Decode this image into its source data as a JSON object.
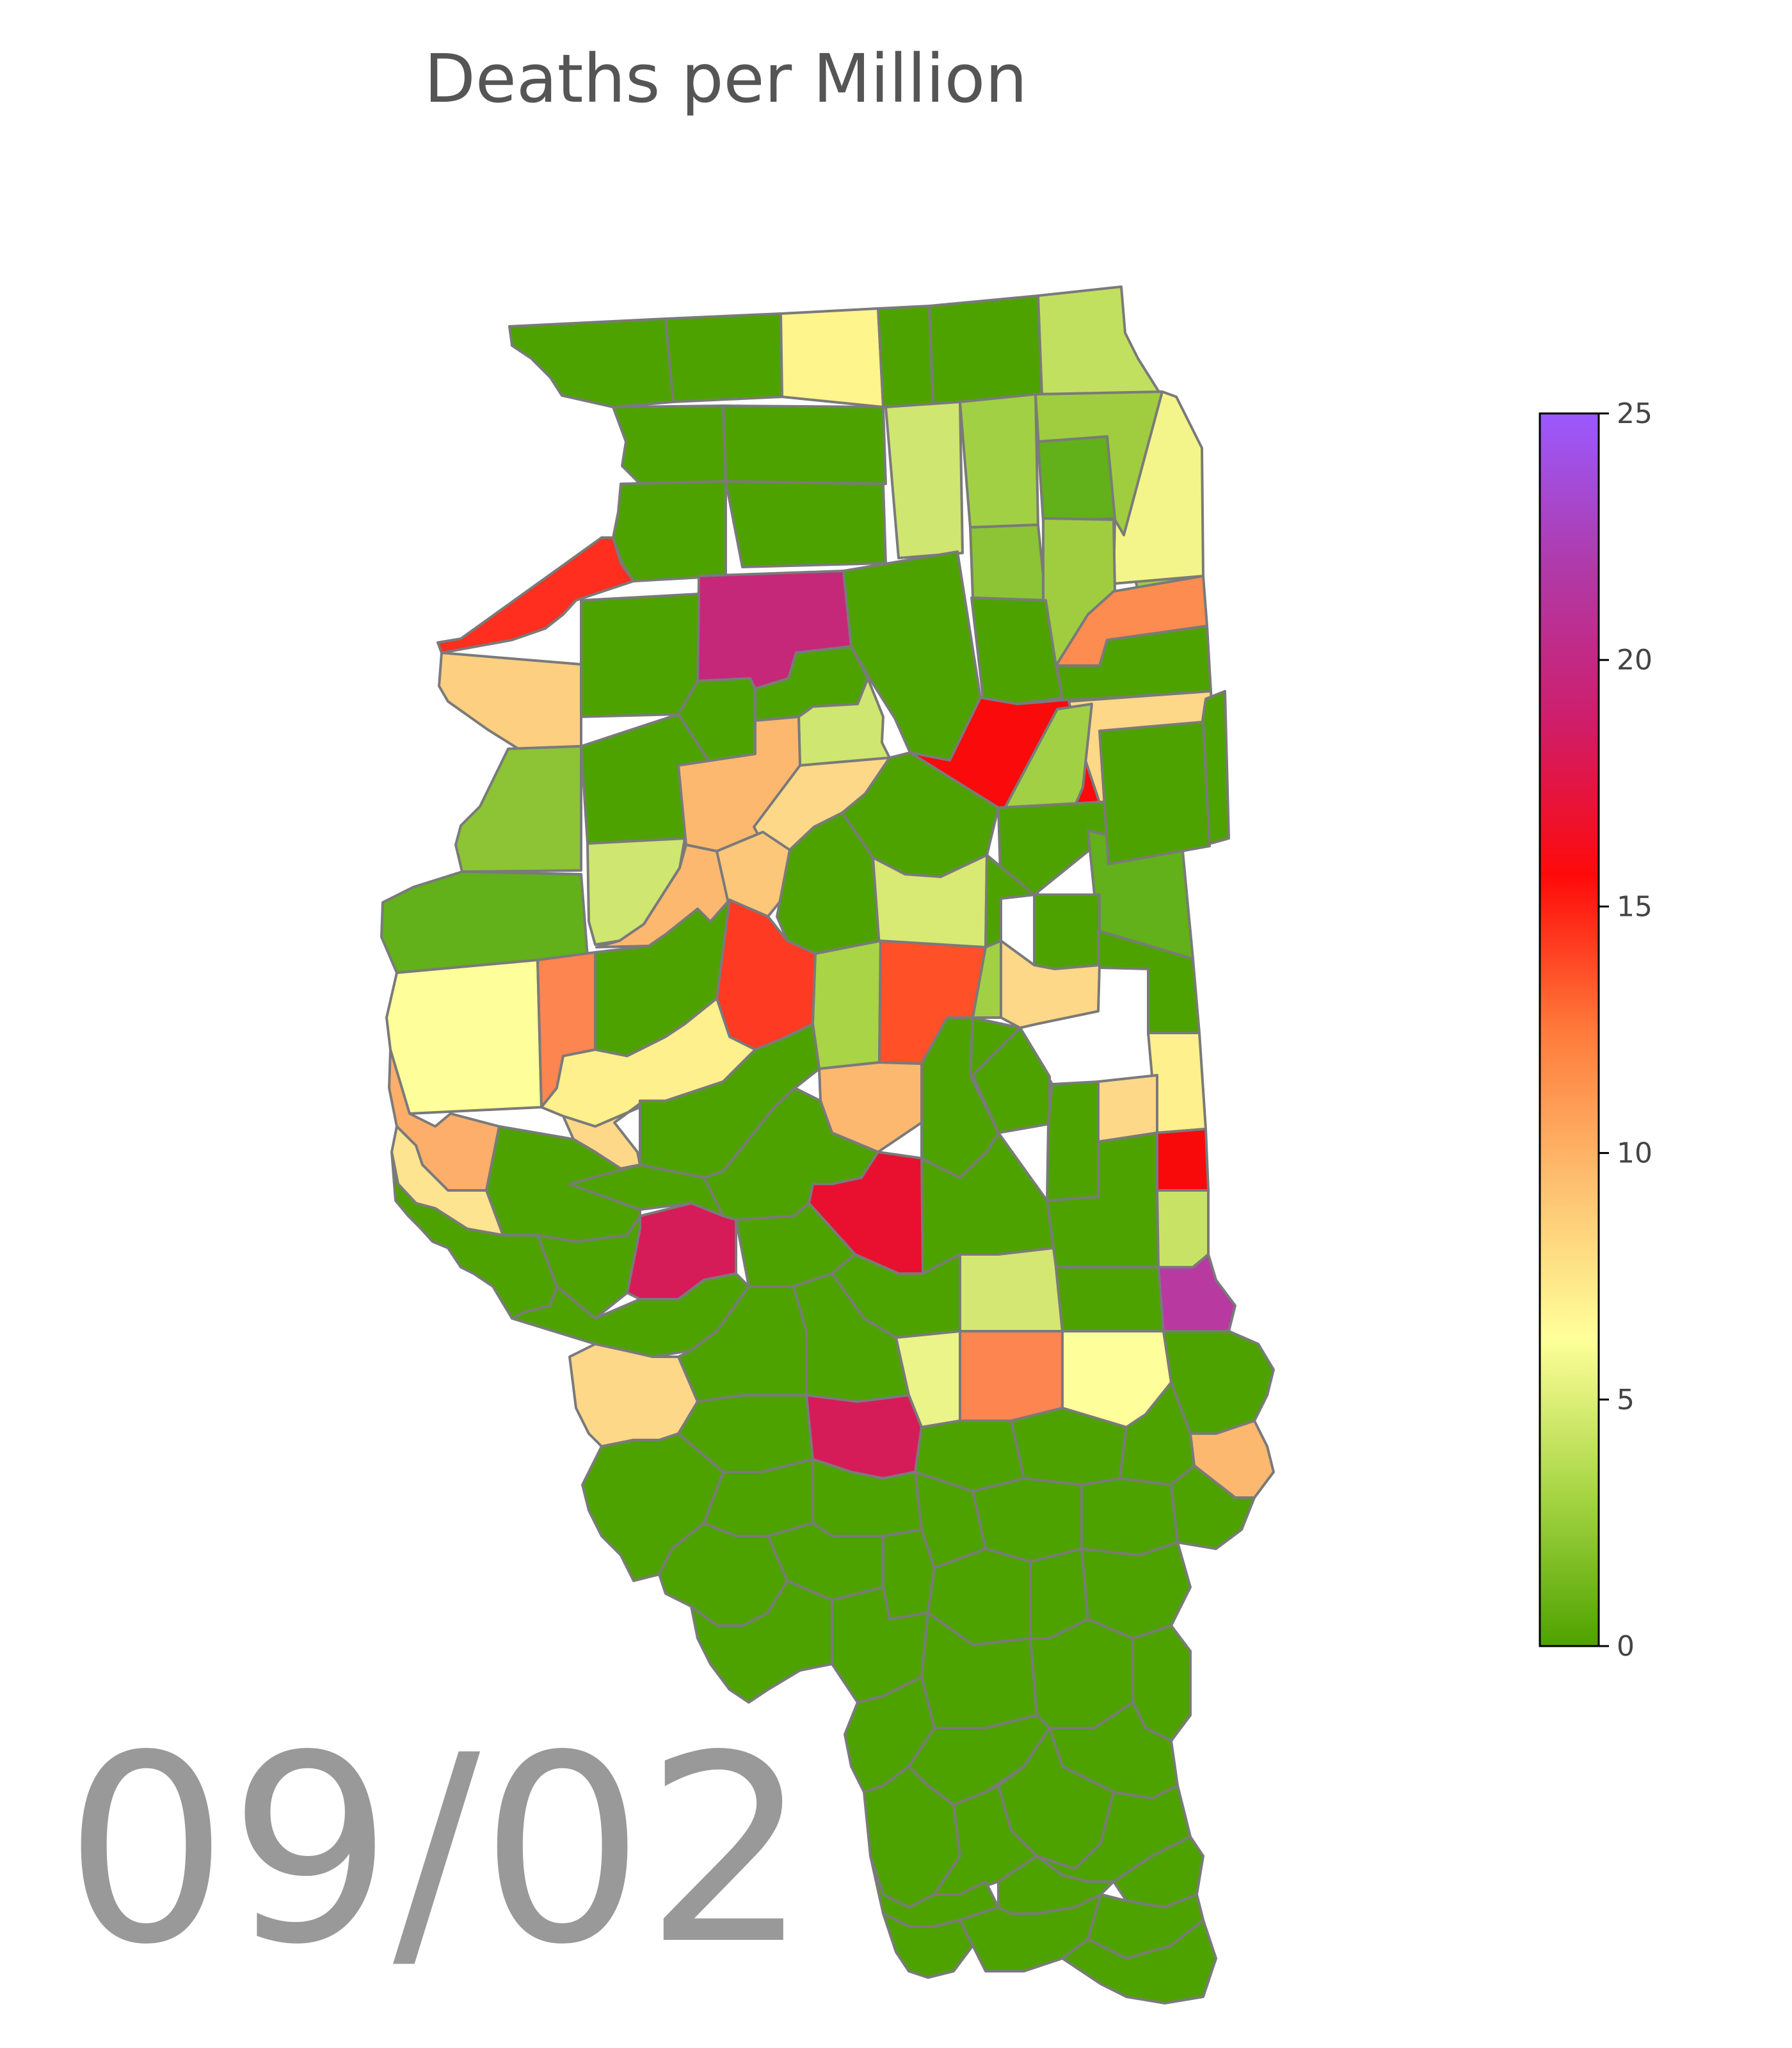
{
  "map": {
    "title": "Deaths per Million",
    "date": "09/02",
    "region": "Illinois",
    "border_color": "#7a7a7a"
  },
  "colorbar": {
    "min": 0,
    "max": 25,
    "ticks": [
      "0",
      "5",
      "10",
      "15",
      "20",
      "25"
    ],
    "stops": [
      "#4ea200",
      "#a8d645",
      "#ffff99",
      "#fdc070",
      "#ff7a3a",
      "#ff0a0a",
      "#cf1d6a",
      "#b03aa8",
      "#9b59ff"
    ]
  },
  "counties": [
    {
      "fill": "#4ea200",
      "value": 0
    },
    {
      "fill": "#4ea200",
      "value": 0
    },
    {
      "fill": "#fef58c",
      "value": 3.2
    },
    {
      "fill": "#4ea200",
      "value": 0
    },
    {
      "fill": "#4ea200",
      "value": 0
    },
    {
      "fill": "#c2e060",
      "value": 1.6
    },
    {
      "fill": "#4ea200",
      "value": 0
    },
    {
      "fill": "#4ea200",
      "value": 0
    },
    {
      "fill": "#cfe670",
      "value": 1.9
    },
    {
      "fill": "#a2d044",
      "value": 1.2
    },
    {
      "fill": "#9fcd3f",
      "value": 1.1
    },
    {
      "fill": "#62b01a",
      "value": 0.4
    },
    {
      "fill": "#f3f58a",
      "value": 2.8
    },
    {
      "fill": "#4ea200",
      "value": 0
    },
    {
      "fill": "#4ea200",
      "value": 0
    },
    {
      "fill": "#8cc435",
      "value": 0.8
    },
    {
      "fill": "#9fcd3f",
      "value": 1.1
    },
    {
      "fill": "#fd8c50",
      "value": 8.2
    },
    {
      "fill": "#ff2e1e",
      "value": 11.5
    },
    {
      "fill": "#c52878",
      "value": 19.5
    },
    {
      "fill": "#4ea200",
      "value": 0
    },
    {
      "fill": "#4ea200",
      "value": 0
    },
    {
      "fill": "#4ea200",
      "value": 0
    },
    {
      "fill": "#fdcf80",
      "value": 5.0
    },
    {
      "fill": "#4ea200",
      "value": 0
    },
    {
      "fill": "#4ea200",
      "value": 0
    },
    {
      "fill": "#4ea200",
      "value": 0
    },
    {
      "fill": "#cfe670",
      "value": 1.9
    },
    {
      "fill": "#fa0a0a",
      "value": 13.8
    },
    {
      "fill": "#fdd888",
      "value": 4.6
    },
    {
      "fill": "#a2d044",
      "value": 1.2
    },
    {
      "fill": "#4ea200",
      "value": 0
    },
    {
      "fill": "#8cc435",
      "value": 0.9
    },
    {
      "fill": "#4ea200",
      "value": 0
    },
    {
      "fill": "#fdb870",
      "value": 5.9
    },
    {
      "fill": "#fdd888",
      "value": 4.6
    },
    {
      "fill": "#4ea200",
      "value": 0
    },
    {
      "fill": "#4ea200",
      "value": 0
    },
    {
      "fill": "#62b01a",
      "value": 0.4
    },
    {
      "fill": "#4ea200",
      "value": 0
    },
    {
      "fill": "#62b01a",
      "value": 0.4
    },
    {
      "fill": "#cfe670",
      "value": 1.9
    },
    {
      "fill": "#fdb870",
      "value": 5.9
    },
    {
      "fill": "#fdc77a",
      "value": 5.3
    },
    {
      "fill": "#4ea200",
      "value": 0
    },
    {
      "fill": "#d8e974",
      "value": 2.1
    },
    {
      "fill": "#4ea200",
      "value": 0
    },
    {
      "fill": "#4ea200",
      "value": 0
    },
    {
      "fill": "#4ea200",
      "value": 0
    },
    {
      "fill": "#fefe9a",
      "value": 3.0
    },
    {
      "fill": "#fd8550",
      "value": 8.6
    },
    {
      "fill": "#4ea200",
      "value": 0
    },
    {
      "fill": "#ff3a22",
      "value": 11.0
    },
    {
      "fill": "#a8d445",
      "value": 1.3
    },
    {
      "fill": "#ff5028",
      "value": 10.3
    },
    {
      "fill": "#a2d044",
      "value": 1.2
    },
    {
      "fill": "#4ea200",
      "value": 0
    },
    {
      "fill": "#fdd888",
      "value": 4.6
    },
    {
      "fill": "#fef08c",
      "value": 3.5
    },
    {
      "fill": "#fdae6a",
      "value": 6.3
    },
    {
      "fill": "#fef08c",
      "value": 3.5
    },
    {
      "fill": "#fdd888",
      "value": 4.6
    },
    {
      "fill": "#4ea200",
      "value": 0
    },
    {
      "fill": "#fdb870",
      "value": 5.9
    },
    {
      "fill": "#4ea200",
      "value": 0
    },
    {
      "fill": "#4ea200",
      "value": 0
    },
    {
      "fill": "#4ea200",
      "value": 0
    },
    {
      "fill": "#fdd888",
      "value": 4.6
    },
    {
      "fill": "#f80a0a",
      "value": 13.9
    },
    {
      "fill": "#fde490",
      "value": 4.2
    },
    {
      "fill": "#4ea200",
      "value": 0
    },
    {
      "fill": "#4ea200",
      "value": 0
    },
    {
      "fill": "#4ea200",
      "value": 0
    },
    {
      "fill": "#e8102e",
      "value": 15.2
    },
    {
      "fill": "#4ea200",
      "value": 0
    },
    {
      "fill": "#4ea200",
      "value": 0
    },
    {
      "fill": "#c8e266",
      "value": 1.7
    },
    {
      "fill": "#4ea200",
      "value": 0
    },
    {
      "fill": "#4ea200",
      "value": 0
    },
    {
      "fill": "#d61c58",
      "value": 17.6
    },
    {
      "fill": "#4ea200",
      "value": 0
    },
    {
      "fill": "#4ea200",
      "value": 0
    },
    {
      "fill": "#d4e772",
      "value": 2.0
    },
    {
      "fill": "#4ea200",
      "value": 0
    },
    {
      "fill": "#b83aa0",
      "value": 21.6
    },
    {
      "fill": "#4ea200",
      "value": 0
    },
    {
      "fill": "#4ea200",
      "value": 0
    },
    {
      "fill": "#4ea200",
      "value": 0
    },
    {
      "fill": "#eaf488",
      "value": 2.6
    },
    {
      "fill": "#fd8550",
      "value": 8.6
    },
    {
      "fill": "#fefe9a",
      "value": 3.0
    },
    {
      "fill": "#4ea200",
      "value": 0
    },
    {
      "fill": "#fdd888",
      "value": 4.6
    },
    {
      "fill": "#4ea200",
      "value": 0
    },
    {
      "fill": "#d61c58",
      "value": 17.6
    },
    {
      "fill": "#4ea200",
      "value": 0
    },
    {
      "fill": "#4ea200",
      "value": 0
    },
    {
      "fill": "#4ea200",
      "value": 0
    },
    {
      "fill": "#fdb870",
      "value": 5.9
    }
  ]
}
